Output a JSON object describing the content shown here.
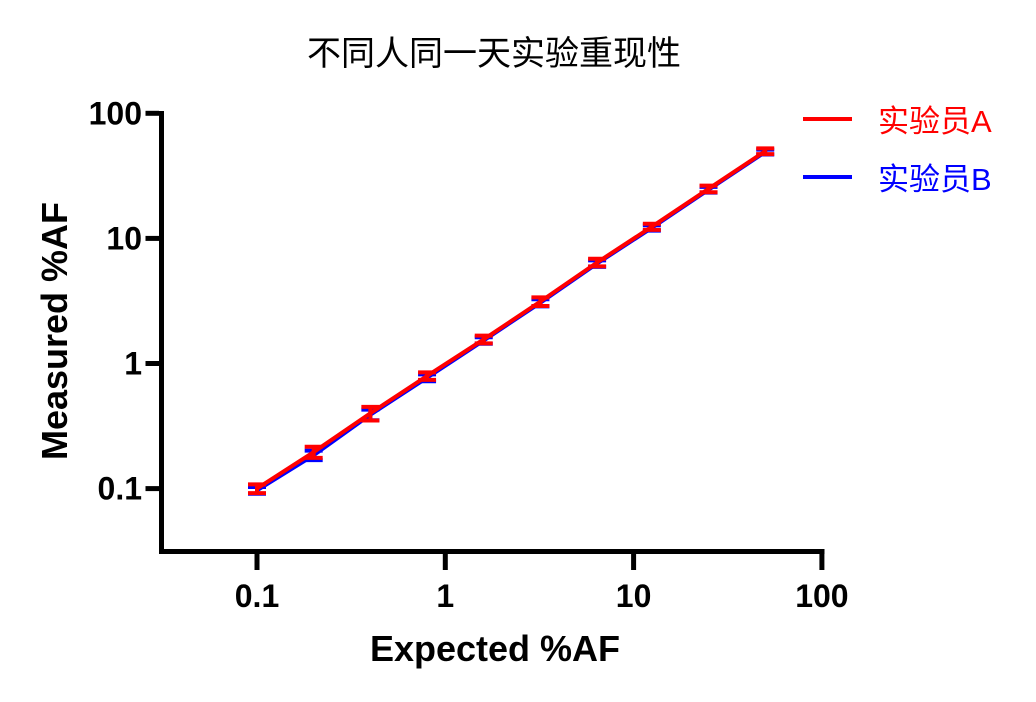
{
  "figure": {
    "background": "#FFFFFF"
  },
  "chart_data": {
    "type": "line",
    "title": "不同人同一天实验重现性",
    "xlabel": "Expected %AF",
    "ylabel": "Measured %AF",
    "x_scale": "log",
    "y_scale": "log",
    "xlim": [
      0.03,
      130
    ],
    "ylim": [
      0.045,
      100
    ],
    "grid": false,
    "legend_position": "top-right",
    "error_bars": "mean ± SD with caps",
    "x_ticks": [
      0.1,
      1,
      10,
      100
    ],
    "x_tick_labels": [
      "0.1",
      "1",
      "10",
      "100"
    ],
    "y_ticks": [
      100,
      10,
      1,
      0.1
    ],
    "y_tick_labels": [
      "100",
      "10",
      "1",
      "0.1"
    ],
    "x": [
      0.1,
      0.2,
      0.4,
      0.8,
      1.6,
      3.2,
      6.4,
      12.5,
      25,
      50
    ],
    "series": [
      {
        "name": "实验员B",
        "color": "#0000FF",
        "values": [
          0.097,
          0.185,
          0.39,
          0.77,
          1.53,
          3.06,
          6.3,
          12.15,
          24.5,
          49.0
        ],
        "errors": [
          0.006,
          0.016,
          0.038,
          0.048,
          0.09,
          0.2,
          0.38,
          0.6,
          1.3,
          2.2
        ]
      },
      {
        "name": "实验员A",
        "color": "#FF0000",
        "values": [
          0.1,
          0.196,
          0.4,
          0.795,
          1.56,
          3.13,
          6.42,
          12.4,
          24.9,
          49.8
        ],
        "errors": [
          0.008,
          0.02,
          0.05,
          0.055,
          0.11,
          0.25,
          0.45,
          0.7,
          1.5,
          2.6
        ]
      }
    ]
  },
  "legend": {
    "items": [
      {
        "label": "实验员A",
        "color": "#FF0000"
      },
      {
        "label": "实验员B",
        "color": "#0000FF"
      }
    ]
  }
}
